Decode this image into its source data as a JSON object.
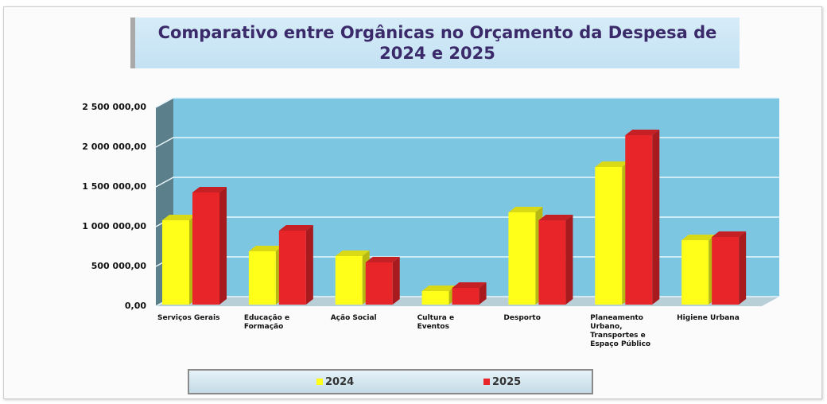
{
  "chart_data": {
    "type": "bar3d",
    "title": "Comparativo entre Orgânicas no Orçamento da Despesa de 2024 e 2025",
    "categories": [
      "Serviços Gerais",
      "Educação e Formação",
      "Ação Social",
      "Cultura e Eventos",
      "Desporto",
      "Planeamento Urbano, Transportes e Espaço Público",
      "Higiene Urbana"
    ],
    "series": [
      {
        "name": "2024",
        "color": "#ffff1a",
        "values": [
          1080000,
          690000,
          630000,
          190000,
          1180000,
          1750000,
          830000
        ]
      },
      {
        "name": "2025",
        "color": "#e8262a",
        "values": [
          1430000,
          950000,
          550000,
          230000,
          1080000,
          2150000,
          870000
        ]
      }
    ],
    "ylim": [
      0,
      2500000
    ],
    "yticks": [
      {
        "value": 0,
        "label": "0,00"
      },
      {
        "value": 500000,
        "label": "500 000,00"
      },
      {
        "value": 1000000,
        "label": "1 000 000,00"
      },
      {
        "value": 1500000,
        "label": "1 500 000,00"
      },
      {
        "value": 2000000,
        "label": "2 000 000,00"
      },
      {
        "value": 2500000,
        "label": "2 500 000,00"
      }
    ],
    "grid": true,
    "legend": "bottom"
  }
}
